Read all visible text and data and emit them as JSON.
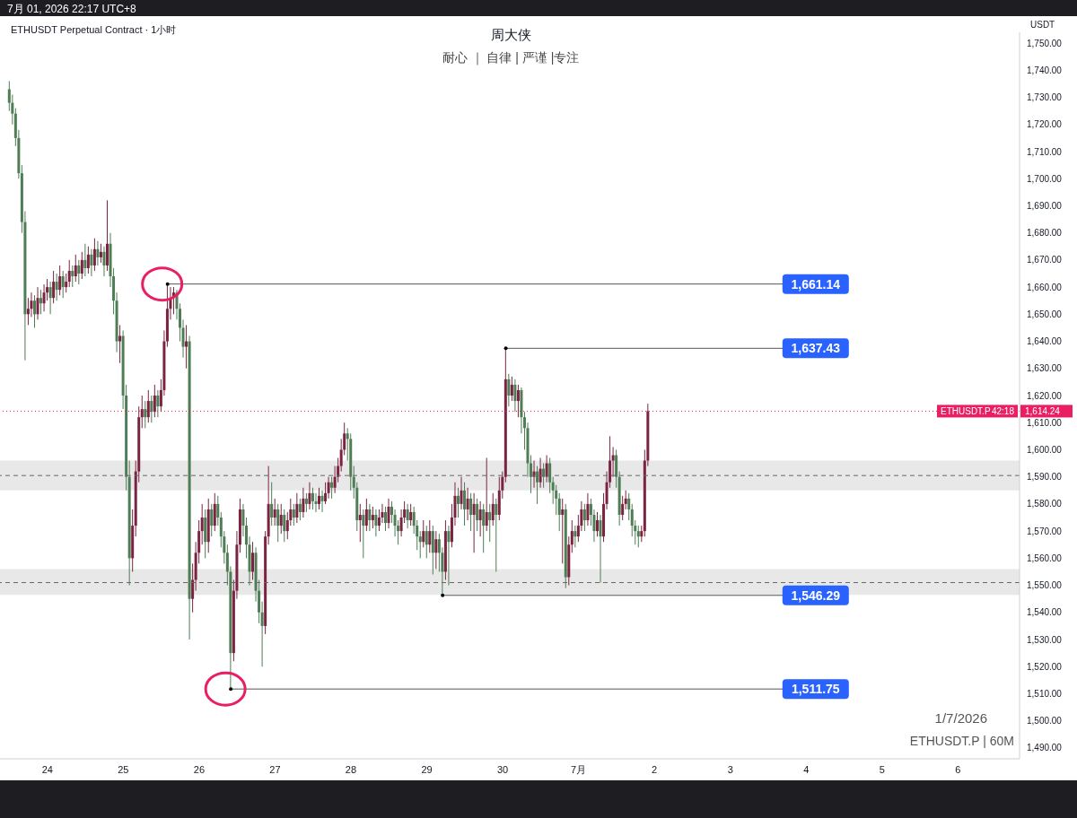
{
  "chart_data": {
    "type": "candlestick",
    "title": "周大侠",
    "subtitle": "耐心 ｜ 自律 | 严谨 |专注",
    "ylabel": "USDT",
    "annotations": [
      "7月 01, 2026 22:17 UTC+8",
      "ETHUSDT Perpetual Contract · 1小时",
      "ETHUSDT.P",
      "42:18",
      "1/7/2026",
      "ETHUSDT.P | 60M",
      {
        "text": "1,661.14",
        "x": "2026-06-25T14:00",
        "y": 1661.14
      },
      {
        "text": "1,637.43",
        "x": "2026-06-30T01:00",
        "y": 1637.43
      },
      {
        "text": "1,546.29",
        "x": "2026-06-29T05:00",
        "y": 1546.29
      },
      {
        "text": "1,511.75",
        "x": "2026-06-26T10:00",
        "y": 1511.75
      }
    ],
    "xlim": [
      "2026-06-23T09:00",
      "2026-07-06T19:30"
    ],
    "xticks": [
      {
        "value": "2026-06-24",
        "label": "24"
      },
      {
        "value": "2026-06-25",
        "label": "25"
      },
      {
        "value": "2026-06-26",
        "label": "26"
      },
      {
        "value": "2026-06-27",
        "label": "27"
      },
      {
        "value": "2026-06-28",
        "label": "28"
      },
      {
        "value": "2026-06-29",
        "label": "29"
      },
      {
        "value": "2026-06-30",
        "label": "30"
      },
      {
        "value": "2026-07-01",
        "label": "7月"
      },
      {
        "value": "2026-07-02",
        "label": "2"
      },
      {
        "value": "2026-07-03",
        "label": "3"
      },
      {
        "value": "2026-07-04",
        "label": "4"
      },
      {
        "value": "2026-07-05",
        "label": "5"
      },
      {
        "value": "2026-07-06",
        "label": "6"
      }
    ],
    "ylim": [
      1486,
      1754
    ],
    "yticks": [
      {
        "value": 1490,
        "label": "1,490.00"
      },
      {
        "value": 1500,
        "label": "1,500.00"
      },
      {
        "value": 1510,
        "label": "1,510.00"
      },
      {
        "value": 1520,
        "label": "1,520.00"
      },
      {
        "value": 1530,
        "label": "1,530.00"
      },
      {
        "value": 1540,
        "label": "1,540.00"
      },
      {
        "value": 1550,
        "label": "1,550.00"
      },
      {
        "value": 1560,
        "label": "1,560.00"
      },
      {
        "value": 1570,
        "label": "1,570.00"
      },
      {
        "value": 1580,
        "label": "1,580.00"
      },
      {
        "value": 1590,
        "label": "1,590.00"
      },
      {
        "value": 1600,
        "label": "1,600.00"
      },
      {
        "value": 1610,
        "label": "1,610.00"
      },
      {
        "value": 1620,
        "label": "1,620.00"
      },
      {
        "value": 1630,
        "label": "1,630.00"
      },
      {
        "value": 1640,
        "label": "1,640.00"
      },
      {
        "value": 1650,
        "label": "1,650.00"
      },
      {
        "value": 1660,
        "label": "1,660.00"
      },
      {
        "value": 1670,
        "label": "1,670.00"
      },
      {
        "value": 1680,
        "label": "1,680.00"
      },
      {
        "value": 1690,
        "label": "1,690.00"
      },
      {
        "value": 1700,
        "label": "1,700.00"
      },
      {
        "value": 1710,
        "label": "1,710.00"
      },
      {
        "value": 1720,
        "label": "1,720.00"
      },
      {
        "value": 1730,
        "label": "1,730.00"
      },
      {
        "value": 1740,
        "label": "1,740.00"
      },
      {
        "value": 1750,
        "label": "1,750.00"
      }
    ],
    "bands": [
      {
        "axis": "y",
        "from": 1585,
        "to": 1596,
        "color": "#e8e8e8"
      },
      {
        "axis": "y",
        "from": 1546.5,
        "to": 1556,
        "color": "#e8e8e8"
      }
    ],
    "ref_lines": [
      {
        "axis": "y",
        "value": 1614.24,
        "label": "1,614.24",
        "color": "#e91e63",
        "line_style": "dotted"
      },
      {
        "axis": "y",
        "value": 1590.5,
        "color": "#666666",
        "line_style": "dashed"
      },
      {
        "axis": "y",
        "value": 1551,
        "color": "#666666",
        "line_style": "dashed"
      }
    ],
    "x": [
      "2026-06-23T12:00",
      "2026-06-23T13:00",
      "2026-06-23T14:00",
      "2026-06-23T15:00",
      "2026-06-23T16:00",
      "2026-06-23T17:00",
      "2026-06-23T18:00",
      "2026-06-23T19:00",
      "2026-06-23T20:00",
      "2026-06-23T21:00",
      "2026-06-23T22:00",
      "2026-06-23T23:00",
      "2026-06-24T00:00",
      "2026-06-24T01:00",
      "2026-06-24T02:00",
      "2026-06-24T03:00",
      "2026-06-24T04:00",
      "2026-06-24T05:00",
      "2026-06-24T06:00",
      "2026-06-24T07:00",
      "2026-06-24T08:00",
      "2026-06-24T09:00",
      "2026-06-24T10:00",
      "2026-06-24T11:00",
      "2026-06-24T12:00",
      "2026-06-24T13:00",
      "2026-06-24T14:00",
      "2026-06-24T15:00",
      "2026-06-24T16:00",
      "2026-06-24T17:00",
      "2026-06-24T18:00",
      "2026-06-24T19:00",
      "2026-06-24T20:00",
      "2026-06-24T21:00",
      "2026-06-24T22:00",
      "2026-06-24T23:00",
      "2026-06-25T00:00",
      "2026-06-25T01:00",
      "2026-06-25T02:00",
      "2026-06-25T03:00",
      "2026-06-25T04:00",
      "2026-06-25T05:00",
      "2026-06-25T06:00",
      "2026-06-25T07:00",
      "2026-06-25T08:00",
      "2026-06-25T09:00",
      "2026-06-25T10:00",
      "2026-06-25T11:00",
      "2026-06-25T12:00",
      "2026-06-25T13:00",
      "2026-06-25T14:00",
      "2026-06-25T15:00",
      "2026-06-25T16:00",
      "2026-06-25T17:00",
      "2026-06-25T18:00",
      "2026-06-25T19:00",
      "2026-06-25T20:00",
      "2026-06-25T21:00",
      "2026-06-25T22:00",
      "2026-06-25T23:00",
      "2026-06-26T00:00",
      "2026-06-26T01:00",
      "2026-06-26T02:00",
      "2026-06-26T03:00",
      "2026-06-26T04:00",
      "2026-06-26T05:00",
      "2026-06-26T06:00",
      "2026-06-26T07:00",
      "2026-06-26T08:00",
      "2026-06-26T09:00",
      "2026-06-26T10:00",
      "2026-06-26T11:00",
      "2026-06-26T12:00",
      "2026-06-26T13:00",
      "2026-06-26T14:00",
      "2026-06-26T15:00",
      "2026-06-26T16:00",
      "2026-06-26T17:00",
      "2026-06-26T18:00",
      "2026-06-26T19:00",
      "2026-06-26T20:00",
      "2026-06-26T21:00",
      "2026-06-26T22:00",
      "2026-06-26T23:00",
      "2026-06-27T00:00",
      "2026-06-27T01:00",
      "2026-06-27T02:00",
      "2026-06-27T03:00",
      "2026-06-27T04:00",
      "2026-06-27T05:00",
      "2026-06-27T06:00",
      "2026-06-27T07:00",
      "2026-06-27T08:00",
      "2026-06-27T09:00",
      "2026-06-27T10:00",
      "2026-06-27T11:00",
      "2026-06-27T12:00",
      "2026-06-27T13:00",
      "2026-06-27T14:00",
      "2026-06-27T15:00",
      "2026-06-27T16:00",
      "2026-06-27T17:00",
      "2026-06-27T18:00",
      "2026-06-27T19:00",
      "2026-06-27T20:00",
      "2026-06-27T21:00",
      "2026-06-27T22:00",
      "2026-06-27T23:00",
      "2026-06-28T00:00",
      "2026-06-28T01:00",
      "2026-06-28T02:00",
      "2026-06-28T03:00",
      "2026-06-28T04:00",
      "2026-06-28T05:00",
      "2026-06-28T06:00",
      "2026-06-28T07:00",
      "2026-06-28T08:00",
      "2026-06-28T09:00",
      "2026-06-28T10:00",
      "2026-06-28T11:00",
      "2026-06-28T12:00",
      "2026-06-28T13:00",
      "2026-06-28T14:00",
      "2026-06-28T15:00",
      "2026-06-28T16:00",
      "2026-06-28T17:00",
      "2026-06-28T18:00",
      "2026-06-28T19:00",
      "2026-06-28T20:00",
      "2026-06-28T21:00",
      "2026-06-28T22:00",
      "2026-06-28T23:00",
      "2026-06-29T00:00",
      "2026-06-29T01:00",
      "2026-06-29T02:00",
      "2026-06-29T03:00",
      "2026-06-29T04:00",
      "2026-06-29T05:00",
      "2026-06-29T06:00",
      "2026-06-29T07:00",
      "2026-06-29T08:00",
      "2026-06-29T09:00",
      "2026-06-29T10:00",
      "2026-06-29T11:00",
      "2026-06-29T12:00",
      "2026-06-29T13:00",
      "2026-06-29T14:00",
      "2026-06-29T15:00",
      "2026-06-29T16:00",
      "2026-06-29T17:00",
      "2026-06-29T18:00",
      "2026-06-29T19:00",
      "2026-06-29T20:00",
      "2026-06-29T21:00",
      "2026-06-29T22:00",
      "2026-06-29T23:00",
      "2026-06-30T00:00",
      "2026-06-30T01:00",
      "2026-06-30T02:00",
      "2026-06-30T03:00",
      "2026-06-30T04:00",
      "2026-06-30T05:00",
      "2026-06-30T06:00",
      "2026-06-30T07:00",
      "2026-06-30T08:00",
      "2026-06-30T09:00",
      "2026-06-30T10:00",
      "2026-06-30T11:00",
      "2026-06-30T12:00",
      "2026-06-30T13:00",
      "2026-06-30T14:00",
      "2026-06-30T15:00",
      "2026-06-30T16:00",
      "2026-06-30T17:00",
      "2026-06-30T18:00",
      "2026-06-30T19:00",
      "2026-06-30T20:00",
      "2026-06-30T21:00",
      "2026-06-30T22:00",
      "2026-06-30T23:00",
      "2026-07-01T00:00",
      "2026-07-01T01:00",
      "2026-07-01T02:00",
      "2026-07-01T03:00",
      "2026-07-01T04:00",
      "2026-07-01T05:00",
      "2026-07-01T06:00",
      "2026-07-01T07:00",
      "2026-07-01T08:00",
      "2026-07-01T09:00",
      "2026-07-01T10:00",
      "2026-07-01T11:00",
      "2026-07-01T12:00",
      "2026-07-01T13:00",
      "2026-07-01T14:00",
      "2026-07-01T15:00",
      "2026-07-01T16:00",
      "2026-07-01T17:00",
      "2026-07-01T18:00",
      "2026-07-01T19:00",
      "2026-07-01T20:00",
      "2026-07-01T21:00",
      "2026-07-01T22:00"
    ],
    "ohlc": [
      [
        1733,
        1736,
        1725,
        1728
      ],
      [
        1728,
        1731,
        1720,
        1724
      ],
      [
        1724,
        1726,
        1712,
        1715
      ],
      [
        1715,
        1718,
        1700,
        1702
      ],
      [
        1702,
        1705,
        1680,
        1684
      ],
      [
        1684,
        1688,
        1633,
        1650
      ],
      [
        1650,
        1656,
        1646,
        1652
      ],
      [
        1652,
        1658,
        1649,
        1655
      ],
      [
        1655,
        1657,
        1645,
        1650
      ],
      [
        1650,
        1660,
        1648,
        1656
      ],
      [
        1656,
        1659,
        1650,
        1654
      ],
      [
        1654,
        1661,
        1651,
        1658
      ],
      [
        1658,
        1663,
        1655,
        1660
      ],
      [
        1660,
        1662,
        1650,
        1656
      ],
      [
        1656,
        1666,
        1654,
        1662
      ],
      [
        1662,
        1665,
        1655,
        1659
      ],
      [
        1659,
        1668,
        1657,
        1664
      ],
      [
        1664,
        1666,
        1656,
        1660
      ],
      [
        1660,
        1665,
        1658,
        1662
      ],
      [
        1662,
        1670,
        1660,
        1666
      ],
      [
        1666,
        1668,
        1660,
        1664
      ],
      [
        1664,
        1672,
        1662,
        1668
      ],
      [
        1668,
        1670,
        1661,
        1665
      ],
      [
        1665,
        1673,
        1663,
        1670
      ],
      [
        1670,
        1676,
        1664,
        1667
      ],
      [
        1667,
        1675,
        1665,
        1672
      ],
      [
        1672,
        1674,
        1664,
        1668
      ],
      [
        1668,
        1678,
        1666,
        1674
      ],
      [
        1674,
        1677,
        1668,
        1671
      ],
      [
        1671,
        1676,
        1669,
        1673
      ],
      [
        1673,
        1675,
        1664,
        1668
      ],
      [
        1668,
        1692,
        1666,
        1676
      ],
      [
        1676,
        1680,
        1660,
        1664
      ],
      [
        1664,
        1667,
        1650,
        1655
      ],
      [
        1655,
        1658,
        1636,
        1640
      ],
      [
        1640,
        1646,
        1632,
        1642
      ],
      [
        1642,
        1644,
        1615,
        1620
      ],
      [
        1620,
        1624,
        1585,
        1590
      ],
      [
        1590,
        1596,
        1550,
        1560
      ],
      [
        1560,
        1578,
        1555,
        1572
      ],
      [
        1572,
        1596,
        1568,
        1592
      ],
      [
        1592,
        1616,
        1588,
        1612
      ],
      [
        1612,
        1620,
        1608,
        1615
      ],
      [
        1615,
        1618,
        1608,
        1612
      ],
      [
        1612,
        1622,
        1610,
        1618
      ],
      [
        1618,
        1620,
        1610,
        1614
      ],
      [
        1614,
        1624,
        1612,
        1620
      ],
      [
        1620,
        1622,
        1612,
        1616
      ],
      [
        1616,
        1626,
        1614,
        1622
      ],
      [
        1622,
        1644,
        1620,
        1640
      ],
      [
        1640,
        1661.14,
        1638,
        1652
      ],
      [
        1652,
        1660,
        1648,
        1656
      ],
      [
        1656,
        1660,
        1650,
        1658
      ],
      [
        1658,
        1659,
        1648,
        1652
      ],
      [
        1652,
        1654,
        1640,
        1645
      ],
      [
        1645,
        1648,
        1634,
        1638
      ],
      [
        1638,
        1646,
        1630,
        1640
      ],
      [
        1640,
        1642,
        1530,
        1545
      ],
      [
        1545,
        1558,
        1540,
        1552
      ],
      [
        1552,
        1566,
        1548,
        1562
      ],
      [
        1562,
        1574,
        1558,
        1570
      ],
      [
        1570,
        1580,
        1565,
        1575
      ],
      [
        1575,
        1578,
        1560,
        1566
      ],
      [
        1566,
        1582,
        1562,
        1578
      ],
      [
        1578,
        1580,
        1568,
        1572
      ],
      [
        1572,
        1584,
        1570,
        1580
      ],
      [
        1580,
        1583,
        1572,
        1575
      ],
      [
        1575,
        1577,
        1564,
        1568
      ],
      [
        1568,
        1570,
        1558,
        1562
      ],
      [
        1562,
        1565,
        1550,
        1555
      ],
      [
        1555,
        1557,
        1511.75,
        1525
      ],
      [
        1525,
        1552,
        1522,
        1548
      ],
      [
        1548,
        1570,
        1545,
        1565
      ],
      [
        1565,
        1582,
        1562,
        1578
      ],
      [
        1578,
        1580,
        1568,
        1572
      ],
      [
        1572,
        1575,
        1560,
        1565
      ],
      [
        1565,
        1568,
        1550,
        1555
      ],
      [
        1555,
        1566,
        1552,
        1562
      ],
      [
        1562,
        1564,
        1544,
        1548
      ],
      [
        1548,
        1552,
        1536,
        1540
      ],
      [
        1540,
        1544,
        1520,
        1535
      ],
      [
        1535,
        1570,
        1532,
        1568
      ],
      [
        1568,
        1594,
        1565,
        1580
      ],
      [
        1580,
        1588,
        1572,
        1575
      ],
      [
        1575,
        1582,
        1572,
        1578
      ],
      [
        1578,
        1580,
        1566,
        1572
      ],
      [
        1572,
        1580,
        1569,
        1576
      ],
      [
        1576,
        1578,
        1566,
        1570
      ],
      [
        1570,
        1577,
        1567,
        1574
      ],
      [
        1574,
        1582,
        1572,
        1578
      ],
      [
        1578,
        1580,
        1572,
        1575
      ],
      [
        1575,
        1584,
        1573,
        1580
      ],
      [
        1580,
        1582,
        1574,
        1577
      ],
      [
        1577,
        1586,
        1575,
        1582
      ],
      [
        1582,
        1584,
        1577,
        1580
      ],
      [
        1580,
        1588,
        1578,
        1584
      ],
      [
        1584,
        1586,
        1578,
        1581
      ],
      [
        1581,
        1584,
        1577,
        1580
      ],
      [
        1580,
        1586,
        1578,
        1583
      ],
      [
        1583,
        1585,
        1577,
        1581
      ],
      [
        1581,
        1588,
        1580,
        1584
      ],
      [
        1584,
        1590,
        1582,
        1588
      ],
      [
        1588,
        1590,
        1582,
        1586
      ],
      [
        1586,
        1594,
        1584,
        1590
      ],
      [
        1590,
        1597,
        1588,
        1594
      ],
      [
        1594,
        1604,
        1592,
        1600
      ],
      [
        1600,
        1610,
        1598,
        1606
      ],
      [
        1606,
        1608,
        1596,
        1604
      ],
      [
        1604,
        1606,
        1585,
        1590
      ],
      [
        1590,
        1594,
        1582,
        1586
      ],
      [
        1586,
        1588,
        1570,
        1574
      ],
      [
        1574,
        1580,
        1566,
        1576
      ],
      [
        1576,
        1578,
        1560,
        1572
      ],
      [
        1572,
        1582,
        1570,
        1578
      ],
      [
        1578,
        1580,
        1570,
        1574
      ],
      [
        1574,
        1579,
        1571,
        1576
      ],
      [
        1576,
        1578,
        1568,
        1572
      ],
      [
        1572,
        1578,
        1570,
        1575
      ],
      [
        1575,
        1580,
        1573,
        1577
      ],
      [
        1577,
        1579,
        1570,
        1573
      ],
      [
        1573,
        1582,
        1571,
        1579
      ],
      [
        1579,
        1581,
        1573,
        1576
      ],
      [
        1576,
        1578,
        1568,
        1572
      ],
      [
        1572,
        1574,
        1565,
        1570
      ],
      [
        1570,
        1578,
        1568,
        1575
      ],
      [
        1575,
        1581,
        1573,
        1578
      ],
      [
        1578,
        1580,
        1571,
        1574
      ],
      [
        1574,
        1580,
        1572,
        1577
      ],
      [
        1577,
        1579,
        1569,
        1572
      ],
      [
        1572,
        1574,
        1563,
        1568
      ],
      [
        1568,
        1570,
        1560,
        1566
      ],
      [
        1566,
        1574,
        1564,
        1570
      ],
      [
        1570,
        1572,
        1560,
        1565
      ],
      [
        1565,
        1574,
        1562,
        1570
      ],
      [
        1570,
        1572,
        1554,
        1562
      ],
      [
        1562,
        1570,
        1556,
        1567
      ],
      [
        1567,
        1569,
        1555,
        1562
      ],
      [
        1562,
        1564,
        1546.29,
        1555
      ],
      [
        1555,
        1574,
        1552,
        1570
      ],
      [
        1570,
        1572,
        1550,
        1566
      ],
      [
        1566,
        1580,
        1564,
        1575
      ],
      [
        1575,
        1588,
        1572,
        1583
      ],
      [
        1583,
        1586,
        1575,
        1580
      ],
      [
        1580,
        1590,
        1578,
        1585
      ],
      [
        1585,
        1588,
        1572,
        1578
      ],
      [
        1578,
        1586,
        1574,
        1582
      ],
      [
        1582,
        1584,
        1570,
        1576
      ],
      [
        1576,
        1584,
        1562,
        1580
      ],
      [
        1580,
        1582,
        1570,
        1574
      ],
      [
        1574,
        1581,
        1568,
        1578
      ],
      [
        1578,
        1580,
        1562,
        1572
      ],
      [
        1572,
        1597,
        1570,
        1577
      ],
      [
        1577,
        1580,
        1566,
        1574
      ],
      [
        1574,
        1584,
        1572,
        1580
      ],
      [
        1580,
        1582,
        1555,
        1576
      ],
      [
        1576,
        1590,
        1574,
        1585
      ],
      [
        1585,
        1592,
        1582,
        1590
      ],
      [
        1590,
        1637.43,
        1588,
        1626
      ],
      [
        1626,
        1628,
        1616,
        1620
      ],
      [
        1620,
        1627,
        1618,
        1624
      ],
      [
        1624,
        1626,
        1614,
        1618
      ],
      [
        1618,
        1624,
        1612,
        1622
      ],
      [
        1622,
        1623,
        1606,
        1612
      ],
      [
        1612,
        1614,
        1600,
        1608
      ],
      [
        1608,
        1610,
        1590,
        1595
      ],
      [
        1595,
        1598,
        1584,
        1590
      ],
      [
        1590,
        1596,
        1586,
        1592
      ],
      [
        1592,
        1594,
        1580,
        1588
      ],
      [
        1588,
        1597,
        1586,
        1593
      ],
      [
        1593,
        1595,
        1586,
        1590
      ],
      [
        1590,
        1598,
        1588,
        1595
      ],
      [
        1595,
        1597,
        1584,
        1588
      ],
      [
        1588,
        1590,
        1580,
        1585
      ],
      [
        1585,
        1587,
        1576,
        1582
      ],
      [
        1582,
        1584,
        1570,
        1576
      ],
      [
        1576,
        1582,
        1558,
        1578
      ],
      [
        1578,
        1580,
        1549,
        1553
      ],
      [
        1553,
        1568,
        1550,
        1565
      ],
      [
        1565,
        1574,
        1562,
        1570
      ],
      [
        1570,
        1572,
        1564,
        1568
      ],
      [
        1568,
        1576,
        1566,
        1572
      ],
      [
        1572,
        1581,
        1570,
        1578
      ],
      [
        1578,
        1580,
        1570,
        1574
      ],
      [
        1574,
        1584,
        1572,
        1580
      ],
      [
        1580,
        1582,
        1572,
        1576
      ],
      [
        1576,
        1578,
        1566,
        1570
      ],
      [
        1570,
        1577,
        1568,
        1574
      ],
      [
        1574,
        1576,
        1551,
        1568
      ],
      [
        1568,
        1584,
        1566,
        1580
      ],
      [
        1580,
        1592,
        1578,
        1588
      ],
      [
        1588,
        1605,
        1586,
        1596
      ],
      [
        1596,
        1601,
        1590,
        1598
      ],
      [
        1598,
        1600,
        1586,
        1590
      ],
      [
        1590,
        1592,
        1572,
        1576
      ],
      [
        1576,
        1583,
        1574,
        1580
      ],
      [
        1580,
        1585,
        1578,
        1582
      ],
      [
        1582,
        1584,
        1574,
        1578
      ],
      [
        1578,
        1580,
        1568,
        1572
      ],
      [
        1572,
        1574,
        1565,
        1570
      ],
      [
        1570,
        1572,
        1564,
        1568
      ],
      [
        1568,
        1572,
        1566,
        1570
      ],
      [
        1570,
        1600,
        1568,
        1596
      ],
      [
        1596,
        1617,
        1594,
        1614.24
      ]
    ],
    "colors": [
      "#4f7d56",
      "#4f7d56",
      "#4f7d56",
      "#4f7d56",
      "#4f7d56",
      "#4f7d56",
      "#7b2442",
      "#7b2442",
      "#4f7d56",
      "#7b2442",
      "#4f7d56",
      "#7b2442",
      "#7b2442",
      "#4f7d56",
      "#7b2442",
      "#4f7d56",
      "#7b2442",
      "#4f7d56",
      "#7b2442",
      "#7b2442",
      "#4f7d56",
      "#7b2442",
      "#4f7d56",
      "#7b2442",
      "#4f7d56",
      "#7b2442",
      "#4f7d56",
      "#7b2442",
      "#4f7d56",
      "#7b2442",
      "#4f7d56",
      "#7b2442",
      "#4f7d56",
      "#4f7d56",
      "#4f7d56",
      "#7b2442",
      "#4f7d56",
      "#4f7d56",
      "#4f7d56",
      "#7b2442",
      "#7b2442",
      "#7b2442",
      "#7b2442",
      "#4f7d56",
      "#7b2442",
      "#4f7d56",
      "#7b2442",
      "#4f7d56",
      "#7b2442",
      "#7b2442",
      "#7b2442",
      "#7b2442",
      "#7b2442",
      "#4f7d56",
      "#4f7d56",
      "#4f7d56",
      "#7b2442",
      "#4f7d56",
      "#7b2442",
      "#7b2442",
      "#7b2442",
      "#7b2442",
      "#4f7d56",
      "#7b2442",
      "#4f7d56",
      "#7b2442",
      "#4f7d56",
      "#4f7d56",
      "#4f7d56",
      "#4f7d56",
      "#4f7d56",
      "#7b2442",
      "#7b2442",
      "#7b2442",
      "#4f7d56",
      "#4f7d56",
      "#4f7d56",
      "#7b2442",
      "#4f7d56",
      "#4f7d56",
      "#4f7d56",
      "#7b2442",
      "#7b2442",
      "#4f7d56",
      "#7b2442",
      "#4f7d56",
      "#7b2442",
      "#4f7d56",
      "#7b2442",
      "#7b2442",
      "#4f7d56",
      "#7b2442",
      "#4f7d56",
      "#7b2442",
      "#4f7d56",
      "#7b2442",
      "#4f7d56",
      "#4f7d56",
      "#7b2442",
      "#4f7d56",
      "#7b2442",
      "#7b2442",
      "#4f7d56",
      "#7b2442",
      "#7b2442",
      "#7b2442",
      "#7b2442",
      "#4f7d56",
      "#4f7d56",
      "#4f7d56",
      "#4f7d56",
      "#7b2442",
      "#4f7d56",
      "#7b2442",
      "#4f7d56",
      "#7b2442",
      "#4f7d56",
      "#7b2442",
      "#7b2442",
      "#4f7d56",
      "#7b2442",
      "#4f7d56",
      "#4f7d56",
      "#4f7d56",
      "#7b2442",
      "#7b2442",
      "#4f7d56",
      "#7b2442",
      "#4f7d56",
      "#4f7d56",
      "#4f7d56",
      "#7b2442",
      "#4f7d56",
      "#7b2442",
      "#4f7d56",
      "#7b2442",
      "#4f7d56",
      "#4f7d56",
      "#7b2442",
      "#4f7d56",
      "#7b2442",
      "#7b2442",
      "#4f7d56",
      "#7b2442",
      "#4f7d56",
      "#7b2442",
      "#4f7d56",
      "#7b2442",
      "#4f7d56",
      "#7b2442",
      "#4f7d56",
      "#7b2442",
      "#4f7d56",
      "#7b2442",
      "#4f7d56",
      "#7b2442",
      "#7b2442",
      "#7b2442",
      "#4f7d56",
      "#7b2442",
      "#4f7d56",
      "#7b2442",
      "#4f7d56",
      "#4f7d56",
      "#4f7d56",
      "#4f7d56",
      "#7b2442",
      "#4f7d56",
      "#7b2442",
      "#4f7d56",
      "#7b2442",
      "#4f7d56",
      "#4f7d56",
      "#4f7d56",
      "#4f7d56",
      "#7b2442",
      "#4f7d56",
      "#7b2442",
      "#7b2442",
      "#4f7d56",
      "#7b2442",
      "#7b2442",
      "#4f7d56",
      "#7b2442",
      "#4f7d56",
      "#4f7d56",
      "#7b2442",
      "#4f7d56",
      "#7b2442",
      "#7b2442",
      "#7b2442",
      "#7b2442",
      "#4f7d56",
      "#4f7d56",
      "#7b2442",
      "#7b2442",
      "#4f7d56",
      "#4f7d56",
      "#4f7d56",
      "#4f7d56",
      "#7b2442",
      "#7b2442",
      "#7b2442"
    ]
  }
}
